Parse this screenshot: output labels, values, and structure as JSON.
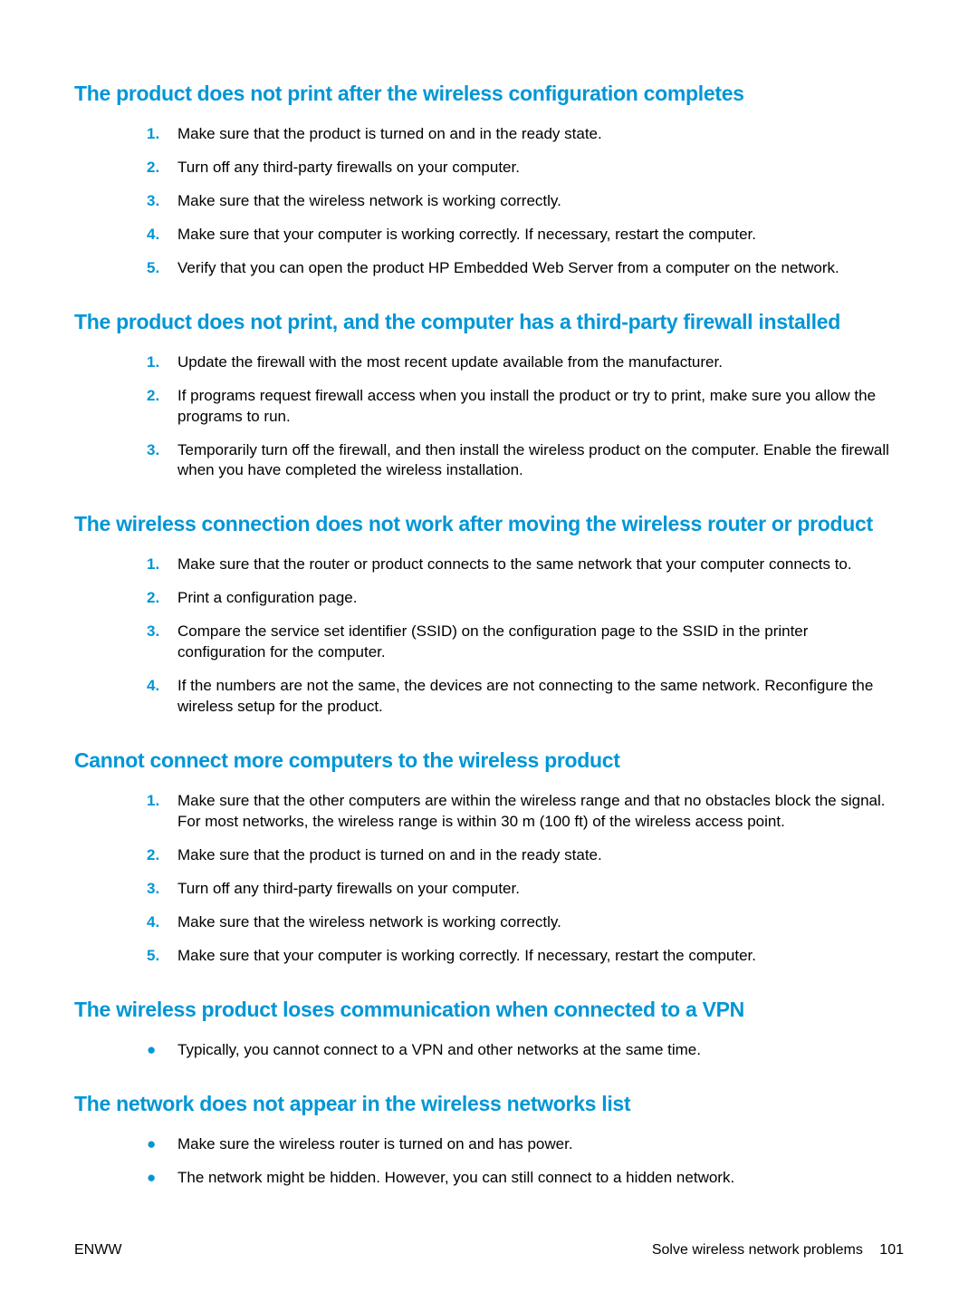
{
  "colors": {
    "accent": "#0096d6",
    "text": "#000000",
    "background": "#ffffff"
  },
  "sections": [
    {
      "heading": "The product does not print after the wireless configuration completes",
      "type": "ordered",
      "items": [
        "Make sure that the product is turned on and in the ready state.",
        "Turn off any third-party firewalls on your computer.",
        "Make sure that the wireless network is working correctly.",
        "Make sure that your computer is working correctly. If necessary, restart the computer.",
        "Verify that you can open the product HP Embedded Web Server from a computer on the network."
      ]
    },
    {
      "heading": "The product does not print, and the computer has a third-party firewall installed",
      "type": "ordered",
      "items": [
        "Update the firewall with the most recent update available from the manufacturer.",
        "If programs request firewall access when you install the product or try to print, make sure you allow the programs to run.",
        "Temporarily turn off the firewall, and then install the wireless product on the computer. Enable the firewall when you have completed the wireless installation."
      ]
    },
    {
      "heading": "The wireless connection does not work after moving the wireless router or product",
      "type": "ordered",
      "items": [
        "Make sure that the router or product connects to the same network that your computer connects to.",
        "Print a configuration page.",
        "Compare the service set identifier (SSID) on the configuration page to the SSID in the printer configuration for the computer.",
        "If the numbers are not the same, the devices are not connecting to the same network. Reconfigure the wireless setup for the product."
      ]
    },
    {
      "heading": "Cannot connect more computers to the wireless product",
      "type": "ordered",
      "items": [
        "Make sure that the other computers are within the wireless range and that no obstacles block the signal. For most networks, the wireless range is within 30 m (100 ft) of the wireless access point.",
        "Make sure that the product is turned on and in the ready state.",
        "Turn off any third-party firewalls on your computer.",
        "Make sure that the wireless network is working correctly.",
        "Make sure that your computer is working correctly. If necessary, restart the computer."
      ]
    },
    {
      "heading": "The wireless product loses communication when connected to a VPN",
      "type": "bullet",
      "items": [
        "Typically, you cannot connect to a VPN and other networks at the same time."
      ]
    },
    {
      "heading": "The network does not appear in the wireless networks list",
      "type": "bullet",
      "items": [
        "Make sure the wireless router is turned on and has power.",
        "The network might be hidden. However, you can still connect to a hidden network."
      ]
    }
  ],
  "footer": {
    "left": "ENWW",
    "right_label": "Solve wireless network problems",
    "page_number": "101"
  }
}
